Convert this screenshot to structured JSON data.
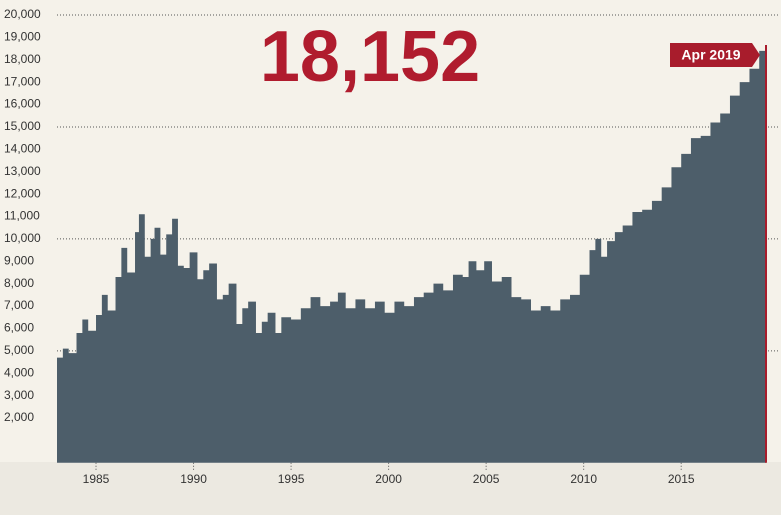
{
  "chart_data": {
    "type": "step-area",
    "headline": "18,152",
    "end_label": "Apr 2019",
    "color": "#4d5e6a",
    "accent": "#a81c2c",
    "x": [
      1983.0,
      1983.3,
      1983.6,
      1984.0,
      1984.3,
      1984.6,
      1985.0,
      1985.3,
      1985.6,
      1986.0,
      1986.3,
      1986.6,
      1987.0,
      1987.2,
      1987.5,
      1987.8,
      1988.0,
      1988.3,
      1988.6,
      1988.9,
      1989.2,
      1989.5,
      1989.8,
      1990.2,
      1990.5,
      1990.8,
      1991.2,
      1991.5,
      1991.8,
      1992.2,
      1992.5,
      1992.8,
      1993.2,
      1993.5,
      1993.8,
      1994.2,
      1994.5,
      1995.0,
      1995.5,
      1996.0,
      1996.5,
      1997.0,
      1997.4,
      1997.8,
      1998.3,
      1998.8,
      1999.3,
      1999.8,
      2000.3,
      2000.8,
      2001.3,
      2001.8,
      2002.3,
      2002.8,
      2003.3,
      2003.8,
      2004.1,
      2004.5,
      2004.9,
      2005.3,
      2005.8,
      2006.3,
      2006.8,
      2007.3,
      2007.8,
      2008.3,
      2008.8,
      2009.3,
      2009.8,
      2010.3,
      2010.6,
      2010.9,
      2011.2,
      2011.6,
      2012.0,
      2012.5,
      2013.0,
      2013.5,
      2014.0,
      2014.5,
      2015.0,
      2015.5,
      2016.0,
      2016.5,
      2017.0,
      2017.5,
      2018.0,
      2018.5,
      2019.0,
      2019.33
    ],
    "values": [
      4700,
      5100,
      4900,
      5800,
      6400,
      5900,
      6600,
      7500,
      6800,
      8300,
      9600,
      8500,
      10300,
      11100,
      9200,
      10000,
      10500,
      9300,
      10200,
      10900,
      8800,
      8700,
      9400,
      8200,
      8600,
      8900,
      7300,
      7500,
      8000,
      6200,
      6900,
      7200,
      5800,
      6300,
      6700,
      5800,
      6500,
      6400,
      6900,
      7400,
      7000,
      7200,
      7600,
      6900,
      7300,
      6900,
      7200,
      6700,
      7200,
      7000,
      7400,
      7600,
      8000,
      7700,
      8400,
      8300,
      9000,
      8600,
      9000,
      8100,
      8300,
      7400,
      7300,
      6800,
      7000,
      6800,
      7300,
      7500,
      8400,
      9500,
      10000,
      9200,
      9900,
      10300,
      10600,
      11200,
      11300,
      11700,
      12300,
      13200,
      13800,
      14500,
      14600,
      15200,
      15600,
      16400,
      17000,
      17600,
      18400,
      18152
    ],
    "xlim": [
      1983,
      2019.45
    ],
    "xticks": [
      1985,
      1990,
      1995,
      2000,
      2005,
      2010,
      2015
    ],
    "ylim": [
      0,
      20000
    ],
    "yticks": [
      {
        "value": 2000,
        "label": "2,000"
      },
      {
        "value": 3000,
        "label": "3,000"
      },
      {
        "value": 4000,
        "label": "4,000"
      },
      {
        "value": 5000,
        "label": "5,000"
      },
      {
        "value": 6000,
        "label": "6,000"
      },
      {
        "value": 7000,
        "label": "7,000"
      },
      {
        "value": 8000,
        "label": "8,000"
      },
      {
        "value": 9000,
        "label": "9,000"
      },
      {
        "value": 10000,
        "label": "10,000"
      },
      {
        "value": 11000,
        "label": "11,000"
      },
      {
        "value": 12000,
        "label": "12,000"
      },
      {
        "value": 13000,
        "label": "13,000"
      },
      {
        "value": 14000,
        "label": "14,000"
      },
      {
        "value": 15000,
        "label": "15,000"
      },
      {
        "value": 16000,
        "label": "16,000"
      },
      {
        "value": 17000,
        "label": "17,000"
      },
      {
        "value": 18000,
        "label": "18,000"
      },
      {
        "value": 19000,
        "label": "19,000"
      },
      {
        "value": 20000,
        "label": "20,000"
      }
    ]
  }
}
